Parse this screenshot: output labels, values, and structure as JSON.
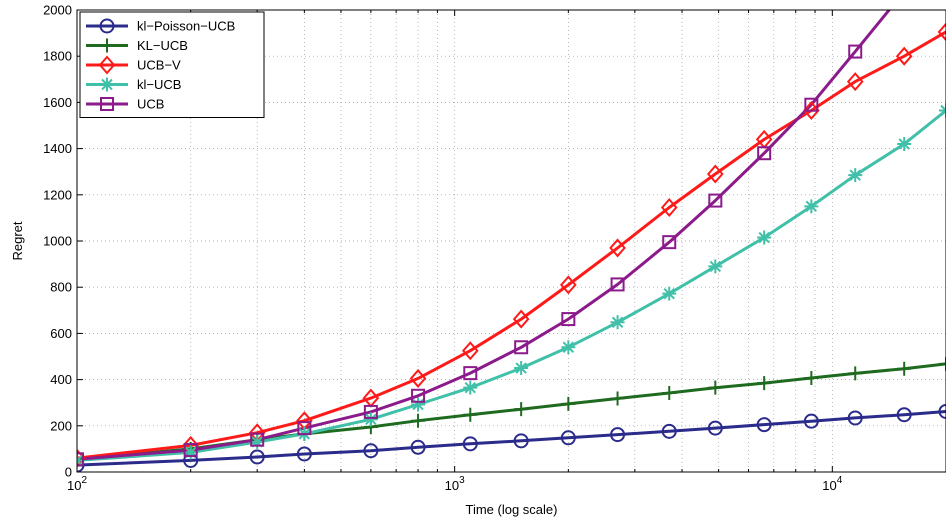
{
  "chart_data": {
    "type": "line",
    "title": "",
    "xlabel": "Time (log scale)",
    "ylabel": "Regret",
    "xscale": "log",
    "xlim": [
      100,
      20000
    ],
    "ylim": [
      0,
      2000
    ],
    "grid": true,
    "legend_position": "top-left",
    "xticks": [
      {
        "value": 100,
        "base": "10",
        "exp": "2"
      },
      {
        "value": 1000,
        "base": "10",
        "exp": "3"
      },
      {
        "value": 10000,
        "base": "10",
        "exp": "4"
      }
    ],
    "yticks": [
      0,
      200,
      400,
      600,
      800,
      1000,
      1200,
      1400,
      1600,
      1800,
      2000
    ],
    "series": [
      {
        "name": "kl−Poisson−UCB",
        "color": "#2b2b8c",
        "marker": "circle",
        "points": [
          [
            100,
            30
          ],
          [
            200,
            50
          ],
          [
            300,
            65
          ],
          [
            400,
            78
          ],
          [
            600,
            92
          ],
          [
            800,
            107
          ],
          [
            1100,
            122
          ],
          [
            1500,
            135
          ],
          [
            2000,
            148
          ],
          [
            2700,
            162
          ],
          [
            3700,
            176
          ],
          [
            4900,
            190
          ],
          [
            6600,
            205
          ],
          [
            8800,
            220
          ],
          [
            11500,
            234
          ],
          [
            15500,
            248
          ],
          [
            20000,
            262
          ]
        ]
      },
      {
        "name": "KL−UCB",
        "color": "#1e6a1e",
        "marker": "plus",
        "points": [
          [
            100,
            55
          ],
          [
            200,
            100
          ],
          [
            300,
            140
          ],
          [
            400,
            165
          ],
          [
            600,
            195
          ],
          [
            800,
            222
          ],
          [
            1100,
            248
          ],
          [
            1500,
            272
          ],
          [
            2000,
            295
          ],
          [
            2700,
            318
          ],
          [
            3700,
            342
          ],
          [
            4900,
            365
          ],
          [
            6600,
            385
          ],
          [
            8800,
            407
          ],
          [
            11500,
            427
          ],
          [
            15500,
            447
          ],
          [
            20000,
            468
          ]
        ]
      },
      {
        "name": "UCB−V",
        "color": "#ff1a1a",
        "marker": "diamond",
        "points": [
          [
            100,
            60
          ],
          [
            200,
            115
          ],
          [
            300,
            170
          ],
          [
            400,
            222
          ],
          [
            600,
            320
          ],
          [
            800,
            405
          ],
          [
            1100,
            525
          ],
          [
            1500,
            662
          ],
          [
            2000,
            810
          ],
          [
            2700,
            970
          ],
          [
            3700,
            1145
          ],
          [
            4900,
            1290
          ],
          [
            6600,
            1440
          ],
          [
            8800,
            1565
          ],
          [
            11500,
            1690
          ],
          [
            15500,
            1800
          ],
          [
            20000,
            1905
          ]
        ]
      },
      {
        "name": "kl−UCB",
        "color": "#40c0a8",
        "marker": "star",
        "points": [
          [
            100,
            50
          ],
          [
            200,
            85
          ],
          [
            300,
            130
          ],
          [
            400,
            165
          ],
          [
            600,
            228
          ],
          [
            800,
            292
          ],
          [
            1100,
            365
          ],
          [
            1500,
            450
          ],
          [
            2000,
            540
          ],
          [
            2700,
            648
          ],
          [
            3700,
            772
          ],
          [
            4900,
            890
          ],
          [
            6600,
            1015
          ],
          [
            8800,
            1150
          ],
          [
            11500,
            1285
          ],
          [
            15500,
            1420
          ],
          [
            20000,
            1565
          ]
        ]
      },
      {
        "name": "UCB",
        "color": "#8b1a8b",
        "marker": "square",
        "points": [
          [
            100,
            55
          ],
          [
            200,
            95
          ],
          [
            300,
            140
          ],
          [
            400,
            190
          ],
          [
            600,
            260
          ],
          [
            800,
            330
          ],
          [
            1100,
            428
          ],
          [
            1500,
            540
          ],
          [
            2000,
            662
          ],
          [
            2700,
            812
          ],
          [
            3700,
            995
          ],
          [
            4900,
            1175
          ],
          [
            6600,
            1380
          ],
          [
            8800,
            1590
          ],
          [
            11500,
            1820
          ],
          [
            15500,
            2080
          ]
        ]
      }
    ]
  }
}
